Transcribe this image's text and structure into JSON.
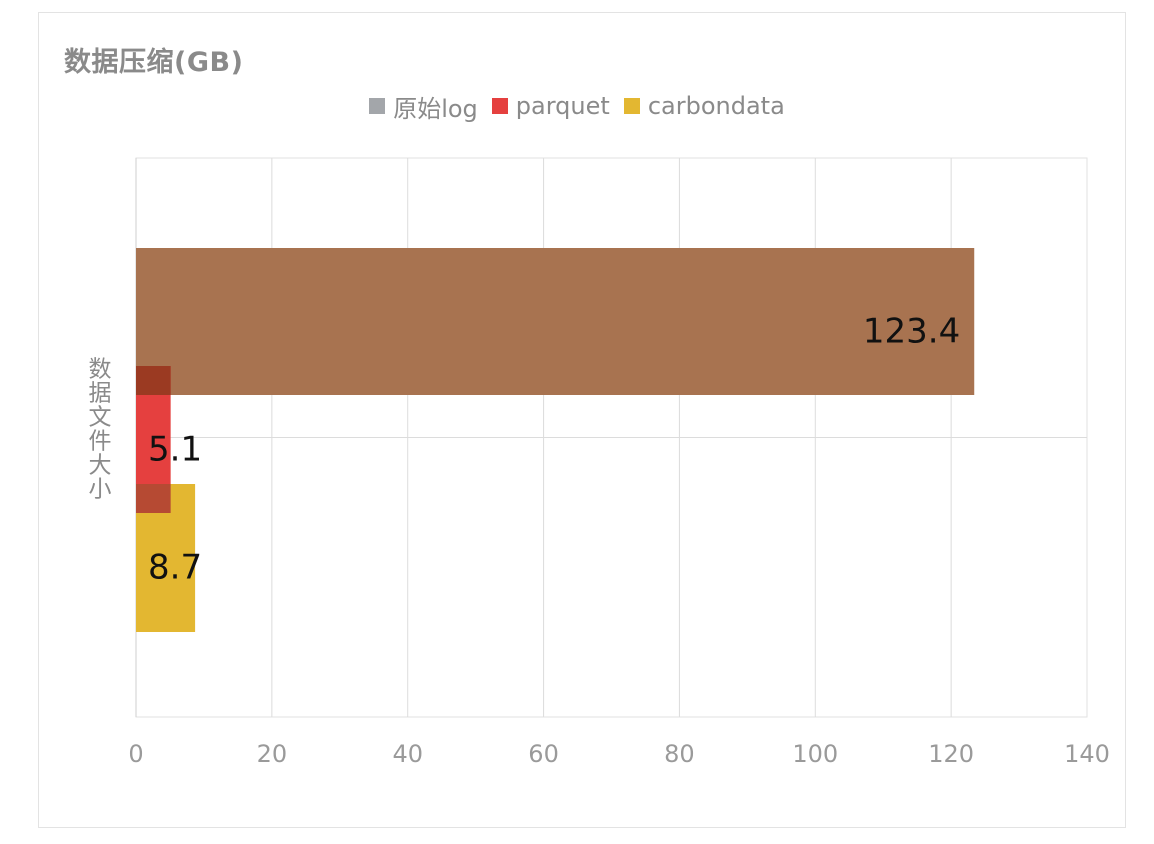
{
  "chart_data": {
    "type": "bar",
    "orientation": "horizontal",
    "title": "数据压缩(GB)",
    "categories": [
      "数据文件大小"
    ],
    "series": [
      {
        "name": "原始log",
        "values": [
          123.4
        ],
        "color": "#a87350"
      },
      {
        "name": "parquet",
        "values": [
          5.1
        ],
        "color": "#e5403f"
      },
      {
        "name": "carbondata",
        "values": [
          8.7
        ],
        "color": "#e3b731"
      }
    ],
    "legend_swatch_colors": [
      "#a3a6aa",
      "#e5403f",
      "#e3b731"
    ],
    "xlim": [
      0,
      140
    ],
    "xticks": [
      0,
      20,
      40,
      60,
      80,
      100,
      120,
      140
    ],
    "xtick_labels": [
      "0",
      "20",
      "40",
      "60",
      "80",
      "100",
      "120",
      "140"
    ],
    "xlabel": "",
    "ylabel": "数据文件大小",
    "data_labels": [
      "123.4",
      "5.1",
      "8.7"
    ],
    "grid": true,
    "legend_position": "top-center"
  }
}
